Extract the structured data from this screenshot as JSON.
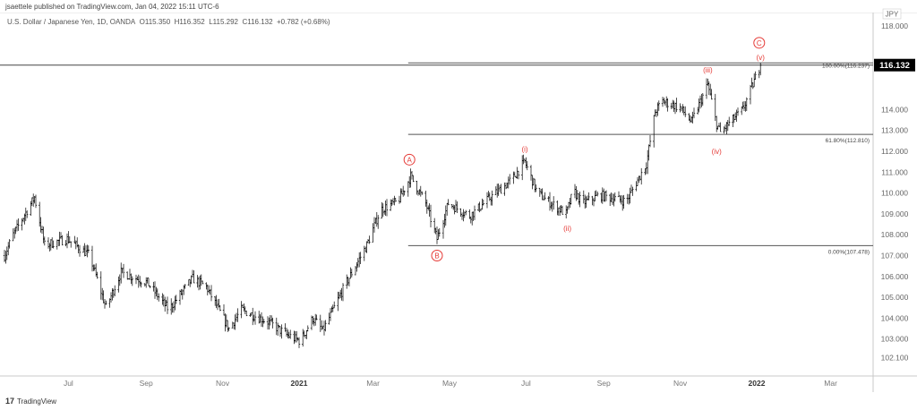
{
  "header": {
    "published": "jsaettele published on TradingView.com, Jan 04, 2022 15:11 UTC-6",
    "symbol_line": "U.S. Dollar / Japanese Yen, 1D, OANDA",
    "open": "O115.350",
    "high": "H116.352",
    "low": "L115.292",
    "close": "C116.132",
    "change": "+0.782 (+0.68%)"
  },
  "footer": {
    "brand": "TradingView",
    "logo_icon": "tradingview-logo-icon"
  },
  "colors": {
    "bars": "#000000",
    "wave_labels": "#e53935",
    "price_tag": "#000000",
    "fib_line": "#555555"
  },
  "chart_data": {
    "type": "ohlc",
    "currency": "JPY",
    "last_price": "116.132",
    "y_ticks": [
      "118.000",
      "114.000",
      "113.000",
      "112.000",
      "111.000",
      "110.000",
      "109.000",
      "108.000",
      "107.000",
      "106.000",
      "105.000",
      "104.000",
      "103.000",
      "102.100"
    ],
    "x_ticks": [
      {
        "label": "Jul",
        "date": "2020-07-01",
        "bold": false
      },
      {
        "label": "Sep",
        "date": "2020-09-01",
        "bold": false
      },
      {
        "label": "Nov",
        "date": "2020-11-01",
        "bold": false
      },
      {
        "label": "2021",
        "date": "2021-01-01",
        "bold": true
      },
      {
        "label": "Mar",
        "date": "2021-03-01",
        "bold": false
      },
      {
        "label": "May",
        "date": "2021-05-01",
        "bold": false
      },
      {
        "label": "Jul",
        "date": "2021-07-01",
        "bold": false
      },
      {
        "label": "Sep",
        "date": "2021-09-01",
        "bold": false
      },
      {
        "label": "Nov",
        "date": "2021-11-01",
        "bold": false
      },
      {
        "label": "2022",
        "date": "2022-01-01",
        "bold": true
      },
      {
        "label": "Mar",
        "date": "2022-03-01",
        "bold": false
      }
    ],
    "price_path": [
      [
        "2020-05-11",
        107.0
      ],
      [
        "2020-05-18",
        108.0
      ],
      [
        "2020-06-04",
        109.8
      ],
      [
        "2020-06-12",
        107.5
      ],
      [
        "2020-06-30",
        107.8
      ],
      [
        "2020-07-18",
        107.0
      ],
      [
        "2020-07-31",
        104.5
      ],
      [
        "2020-08-12",
        106.2
      ],
      [
        "2020-09-02",
        105.7
      ],
      [
        "2020-09-19",
        104.4
      ],
      [
        "2020-10-08",
        105.9
      ],
      [
        "2020-10-19",
        105.5
      ],
      [
        "2020-11-06",
        103.5
      ],
      [
        "2020-11-16",
        104.4
      ],
      [
        "2020-12-08",
        103.8
      ],
      [
        "2020-12-22",
        103.2
      ],
      [
        "2021-01-02",
        102.9
      ],
      [
        "2021-01-12",
        104.0
      ],
      [
        "2021-01-20",
        103.4
      ],
      [
        "2021-02-06",
        105.5
      ],
      [
        "2021-02-24",
        107.5
      ],
      [
        "2021-03-07",
        109.2
      ],
      [
        "2021-03-21",
        109.6
      ],
      [
        "2021-03-31",
        110.8
      ],
      [
        "2021-04-12",
        109.5
      ],
      [
        "2021-04-21",
        107.8
      ],
      [
        "2021-04-30",
        109.5
      ],
      [
        "2021-05-17",
        108.9
      ],
      [
        "2021-06-01",
        109.7
      ],
      [
        "2021-06-19",
        110.6
      ],
      [
        "2021-06-30",
        111.5
      ],
      [
        "2021-07-10",
        110.0
      ],
      [
        "2021-07-21",
        109.5
      ],
      [
        "2021-08-02",
        109.0
      ],
      [
        "2021-08-08",
        110.1
      ],
      [
        "2021-08-15",
        109.5
      ],
      [
        "2021-08-29",
        109.9
      ],
      [
        "2021-09-19",
        109.6
      ],
      [
        "2021-09-27",
        110.5
      ],
      [
        "2021-10-05",
        111.4
      ],
      [
        "2021-10-12",
        113.9
      ],
      [
        "2021-10-18",
        114.4
      ],
      [
        "2021-11-01",
        114.1
      ],
      [
        "2021-11-10",
        113.4
      ],
      [
        "2021-11-23",
        115.2
      ],
      [
        "2021-11-30",
        113.3
      ],
      [
        "2021-12-03",
        112.9
      ],
      [
        "2021-12-11",
        113.4
      ],
      [
        "2021-12-21",
        114.0
      ],
      [
        "2022-01-04",
        116.13
      ]
    ],
    "fib_levels": [
      {
        "label": "100.00%(116.237)",
        "price": 116.237
      },
      {
        "label": "61.80%(112.810)",
        "price": 112.81
      },
      {
        "label": "0.00%(107.478)",
        "price": 107.478
      }
    ],
    "fib_start_date": "2021-03-29",
    "wave_labels": [
      {
        "text": "A",
        "circled": true,
        "date": "2021-03-30",
        "price": 111.6
      },
      {
        "text": "B",
        "circled": true,
        "date": "2021-04-21",
        "price": 107.0
      },
      {
        "text": "C",
        "circled": true,
        "date": "2022-01-03",
        "price": 117.2
      },
      {
        "text": "(i)",
        "circled": false,
        "date": "2021-06-30",
        "price": 112.1
      },
      {
        "text": "(ii)",
        "circled": false,
        "date": "2021-08-03",
        "price": 108.3
      },
      {
        "text": "(iii)",
        "circled": false,
        "date": "2021-11-23",
        "price": 115.9
      },
      {
        "text": "(iv)",
        "circled": false,
        "date": "2021-11-30",
        "price": 112.0
      },
      {
        "text": "(v)",
        "circled": false,
        "date": "2022-01-04",
        "price": 116.5
      }
    ]
  }
}
